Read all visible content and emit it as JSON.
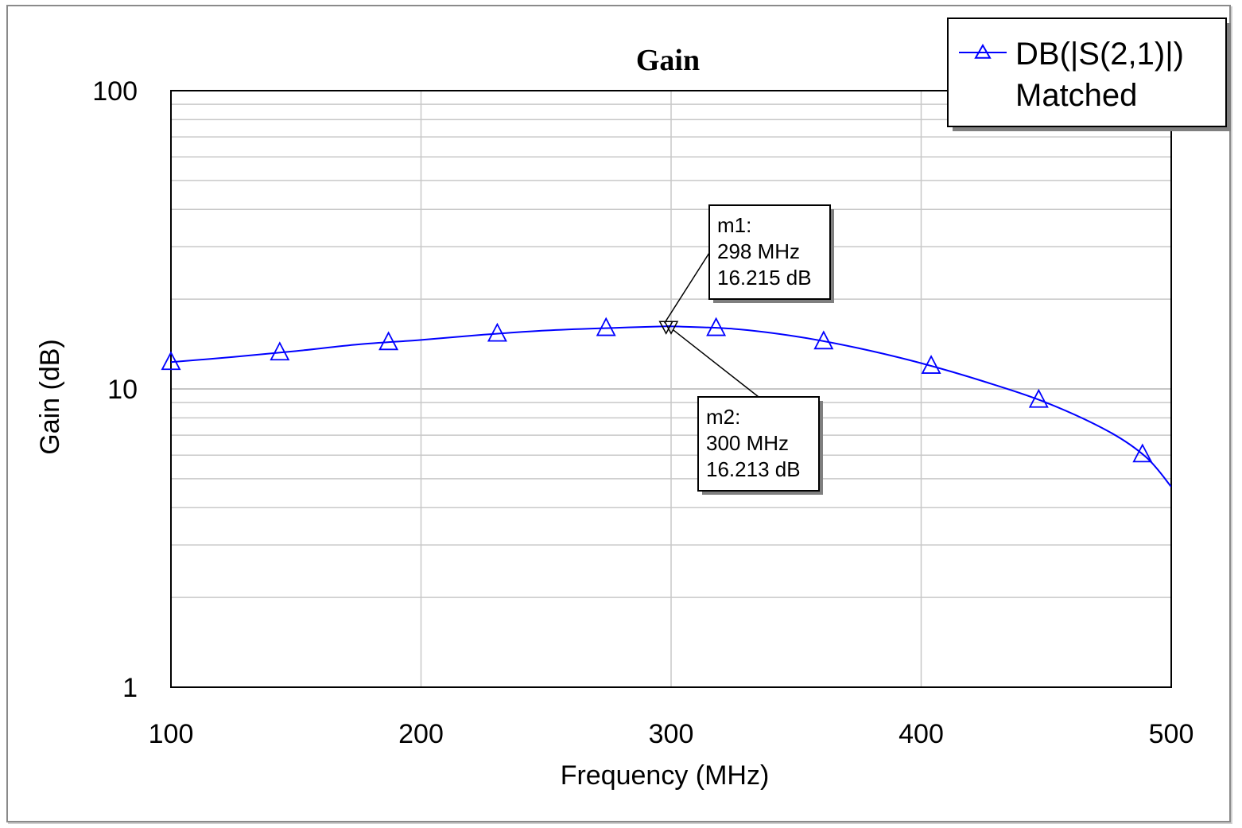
{
  "chart_data": {
    "type": "line",
    "title": "Gain",
    "xlabel": "Frequency (MHz)",
    "ylabel": "Gain (dB)",
    "xlim": [
      100,
      500
    ],
    "ylim": [
      1,
      100
    ],
    "y_scale": "log",
    "grid": true,
    "legend_position": "top-right",
    "x_ticks": [
      "100",
      "200",
      "300",
      "400",
      "500"
    ],
    "y_ticks": [
      "1",
      "10",
      "100"
    ],
    "series": [
      {
        "name": "DB(|S(2,1)|)",
        "name_line2": "Matched",
        "color": "#0000ff",
        "marker": "triangle-up",
        "x": [
          100,
          125,
          150,
          175,
          200,
          225,
          250,
          275,
          298,
          300,
          325,
          350,
          375,
          400,
          425,
          450,
          475,
          490,
          500
        ],
        "values": [
          12.3,
          12.8,
          13.4,
          14.1,
          14.6,
          15.2,
          15.7,
          16.0,
          16.215,
          16.213,
          15.9,
          15.0,
          13.7,
          12.2,
          10.6,
          9.0,
          7.2,
          5.9,
          4.7
        ]
      }
    ],
    "marker_points_x": [
      100,
      143.5,
      187,
      230.5,
      274,
      318,
      361,
      404,
      447,
      488.5
    ],
    "markers": [
      {
        "id": "m1",
        "line1": "m1:",
        "line2": "298 MHz",
        "line3": "16.215 dB",
        "x": 298,
        "y": 16.215
      },
      {
        "id": "m2",
        "line1": "m2:",
        "line2": "300 MHz",
        "line3": "16.213 dB",
        "x": 300,
        "y": 16.213
      }
    ]
  }
}
